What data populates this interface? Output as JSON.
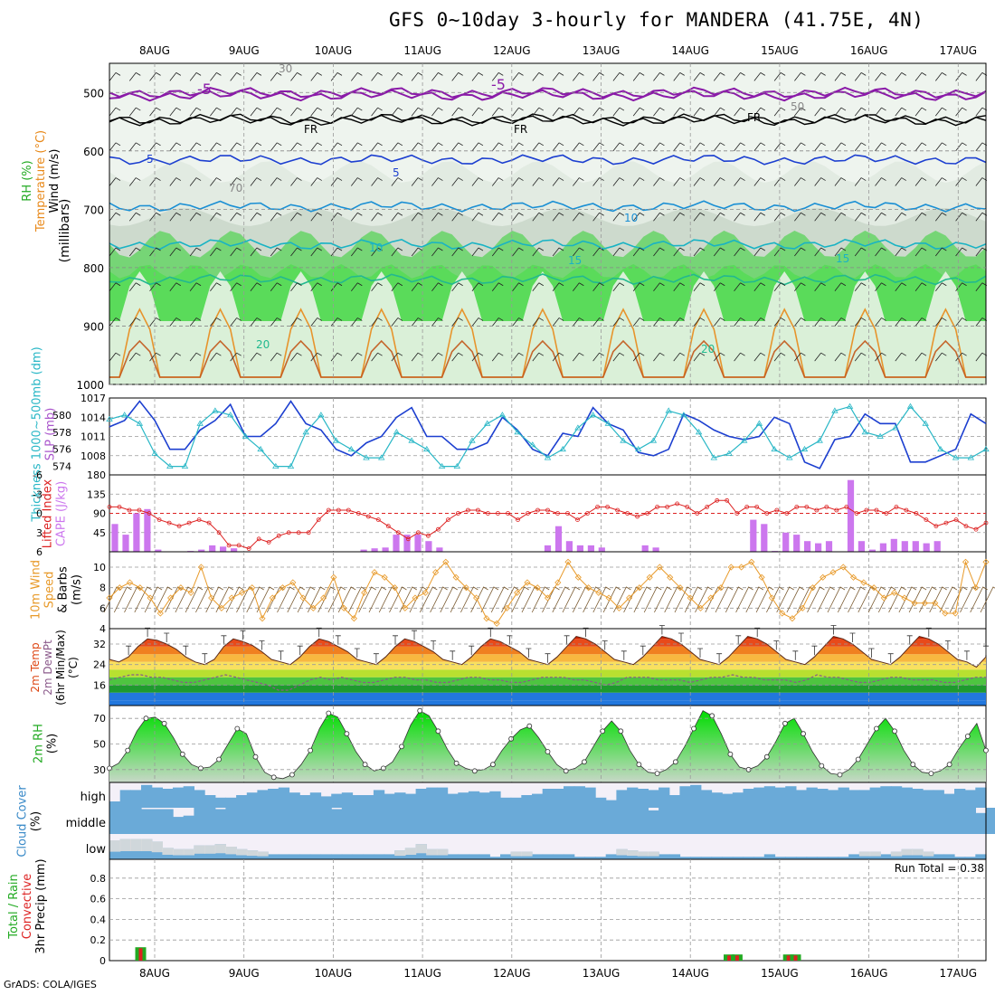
{
  "title": "GFS 0~10day 3-hourly for MANDERA (41.75E, 4N)",
  "credit": "GrADS: COLA/IGES",
  "chart_data": [
    {
      "type": "heatmap",
      "panel": "upper-air",
      "ylabel": "(millibars)",
      "left_labels": [
        "RH (%)",
        "Temperature (°C)",
        "Wind (m/s)"
      ],
      "y_ticks": [
        500,
        600,
        700,
        800,
        900,
        1000
      ],
      "ylim": [
        1000,
        450
      ],
      "x_dates": [
        "8AUG",
        "9AUG",
        "10AUG",
        "11AUG",
        "12AUG",
        "13AUG",
        "14AUG",
        "15AUG",
        "16AUG",
        "17AUG"
      ],
      "contour_labels": [
        "-5",
        "-5",
        "FR",
        "FR",
        "FR",
        "5",
        "5",
        "10",
        "10",
        "15",
        "15",
        "20",
        "20",
        "30",
        "50",
        "70"
      ]
    },
    {
      "type": "line",
      "panel": "slp-thickness",
      "left_labels": [
        "Thickness 1000~500mb (dm)",
        "SLP (mb)"
      ],
      "slp_ticks": [
        1008,
        1011,
        1014,
        1017
      ],
      "thk_ticks": [
        574,
        576,
        578,
        580
      ],
      "series": [
        {
          "name": "SLP (mb)",
          "color": "#1c3fd0",
          "values": [
            1012.5,
            1013.5,
            1016.5,
            1013.5,
            1009,
            1009,
            1012,
            1013.5,
            1016,
            1011,
            1011,
            1013,
            1016.5,
            1013,
            1012,
            1009,
            1008,
            1010,
            1011,
            1014,
            1015.5,
            1011,
            1011,
            1009,
            1009,
            1010,
            1014,
            1012,
            1009,
            1008,
            1011.5,
            1011,
            1015.5,
            1013,
            1012,
            1008.5,
            1008,
            1009,
            1014.5,
            1013.5,
            1012,
            1011,
            1010.5,
            1011,
            1014,
            1013,
            1007,
            1006,
            1010.5,
            1011,
            1014.5,
            1013,
            1013,
            1007,
            1007,
            1008,
            1009,
            1014.5,
            1013
          ]
        },
        {
          "name": "Thickness (dm)",
          "color": "#29b7c6",
          "values": [
            579.5,
            580,
            579,
            575.5,
            574,
            574,
            579,
            580.5,
            580,
            577.5,
            576,
            574,
            574,
            578,
            580,
            577,
            576,
            575,
            575,
            578,
            577,
            576,
            574,
            574,
            577,
            579,
            580,
            578,
            576.5,
            575,
            576,
            578.5,
            580,
            579,
            577,
            576,
            577,
            580.5,
            580,
            578,
            575,
            575.5,
            577,
            579,
            576,
            575,
            576,
            577,
            580.5,
            581,
            578,
            577.5,
            578.5,
            581,
            579,
            576,
            575,
            575,
            576
          ]
        }
      ]
    },
    {
      "type": "bar",
      "panel": "cape-li",
      "left_labels": [
        "Lifted Index",
        "CAPE (J/kg)"
      ],
      "cape_ticks": [
        45,
        90,
        135,
        180
      ],
      "li_ticks": [
        6,
        3,
        0,
        -3,
        -6
      ],
      "series": [
        {
          "name": "CAPE (J/kg)",
          "color": "#cc77ee",
          "values": [
            65,
            40,
            90,
            100,
            5,
            0,
            0,
            2,
            5,
            15,
            12,
            8,
            0,
            0,
            0,
            0,
            0,
            0,
            0,
            0,
            0,
            0,
            0,
            5,
            8,
            10,
            40,
            40,
            40,
            25,
            10,
            0,
            0,
            0,
            0,
            0,
            0,
            0,
            0,
            0,
            15,
            60,
            25,
            15,
            15,
            10,
            0,
            0,
            0,
            15,
            10,
            0,
            0,
            0,
            0,
            0,
            0,
            0,
            0,
            75,
            65,
            2,
            45,
            40,
            25,
            20,
            25,
            0,
            168,
            25,
            5,
            20,
            30,
            25,
            25,
            20,
            25,
            0,
            0,
            0,
            0
          ]
        },
        {
          "name": "Lifted Index",
          "color": "#dd2222",
          "values": [
            -1,
            -1,
            -0.5,
            -0.5,
            0,
            1,
            1.5,
            2,
            1.5,
            1,
            1.5,
            3,
            5,
            5,
            5.5,
            4,
            4.5,
            3.5,
            3,
            3,
            3,
            1,
            -0.5,
            -0.5,
            -0.5,
            0,
            0.5,
            1,
            2,
            3,
            4,
            3,
            3.5,
            2.5,
            1,
            0,
            -0.5,
            -0.5,
            0,
            0,
            0,
            1,
            0,
            -0.5,
            -0.5,
            0,
            0,
            1,
            0,
            -1,
            -1,
            -0.5,
            0,
            0.5,
            0,
            -1,
            -1,
            -1.5,
            -1,
            0,
            -1,
            -2,
            -2,
            0,
            -1,
            -1,
            0,
            -0.5,
            0,
            -1,
            -1,
            -0.5,
            -1,
            -0.5,
            -1,
            0,
            -0.5,
            -0.5,
            0,
            -1,
            -0.5,
            0,
            1,
            2,
            1.5,
            1,
            2,
            2.5,
            1.5
          ]
        }
      ]
    },
    {
      "type": "line",
      "panel": "wind10m",
      "left_labels": [
        "10m Wind",
        "Speed",
        "& Barbs",
        "(m/s)"
      ],
      "y_ticks": [
        4,
        6,
        8,
        10
      ],
      "series": [
        {
          "name": "Speed (m/s)",
          "color": "#e89a2a",
          "values": [
            7,
            8,
            8.5,
            8,
            7,
            5.5,
            7,
            8,
            7.5,
            10,
            7,
            6,
            7,
            7.5,
            8,
            5,
            7,
            8,
            8.5,
            7,
            6,
            7,
            9,
            6,
            5,
            7.5,
            9.5,
            9,
            8,
            6,
            7,
            7.5,
            9.5,
            10.5,
            9,
            8,
            7,
            5,
            4.5,
            6,
            7.5,
            8.5,
            8,
            7,
            8.5,
            10.5,
            9,
            8,
            7.5,
            7,
            6,
            7,
            8,
            9,
            10,
            9,
            8,
            7,
            6,
            7,
            8,
            10,
            10,
            10.5,
            9,
            7,
            5.5,
            5,
            6,
            8,
            9,
            9.5,
            10,
            9,
            8.5,
            8,
            7,
            7.5,
            7,
            6.5,
            6.5,
            6.5,
            5.5,
            5.5,
            10.5,
            8,
            10.5
          ]
        }
      ]
    },
    {
      "type": "area",
      "panel": "temp2m",
      "left_labels": [
        "2m Temp",
        "2m DewPt",
        "(6hr Min/Max)",
        "(°C)"
      ],
      "y_ticks": [
        16,
        24,
        32
      ],
      "series": [
        {
          "name": "2m Temp",
          "color": "#d93a1a",
          "values": [
            26,
            25,
            27,
            31,
            34,
            33.5,
            32,
            30,
            27,
            25,
            24,
            26,
            31,
            34,
            33,
            31.5,
            29,
            26,
            25,
            24,
            27,
            31,
            34,
            33,
            31,
            29,
            26,
            25,
            24,
            27,
            31,
            34,
            33,
            31,
            29,
            26,
            25,
            24,
            27,
            31,
            34,
            33,
            31,
            29,
            26,
            25,
            24,
            27,
            31,
            35,
            34,
            32,
            29,
            26,
            25,
            24,
            27,
            31,
            35,
            34,
            32,
            29,
            26,
            25,
            24,
            27,
            31,
            35,
            34,
            32,
            29,
            26,
            25,
            24,
            27,
            31,
            35,
            34,
            32,
            29,
            26,
            25,
            24,
            27,
            31,
            35,
            34,
            32,
            29,
            26,
            25,
            23,
            27
          ]
        },
        {
          "name": "2m DewPt",
          "color": "#8b5a8b",
          "values": [
            18,
            19,
            20,
            20,
            19,
            19,
            18,
            17,
            17,
            18,
            19,
            20,
            19,
            18,
            17,
            16,
            14,
            14,
            16,
            18,
            19,
            18,
            19,
            18,
            17,
            17,
            18,
            19,
            19,
            18,
            18,
            17,
            17,
            18,
            19,
            19,
            18,
            18,
            17,
            17,
            18,
            19,
            19,
            19,
            18,
            18,
            17,
            16,
            17,
            19,
            19,
            19,
            18,
            18,
            18,
            17,
            18,
            19,
            19,
            20,
            19,
            19,
            18,
            18,
            18,
            17,
            18,
            20,
            19,
            19,
            18,
            17,
            17,
            18,
            19,
            19,
            18,
            18,
            18,
            17,
            17,
            18,
            19,
            19
          ]
        }
      ]
    },
    {
      "type": "area",
      "panel": "rh2m",
      "left_labels": [
        "2m RH",
        "(%)"
      ],
      "y_ticks": [
        30,
        50,
        70
      ],
      "series": [
        {
          "name": "2m RH",
          "color": "#22aa22",
          "values": [
            31,
            35,
            45,
            60,
            70,
            71,
            66,
            55,
            42,
            34,
            31,
            32,
            38,
            50,
            62,
            58,
            40,
            28,
            24,
            23,
            26,
            34,
            45,
            62,
            74,
            71,
            58,
            44,
            34,
            29,
            31,
            36,
            48,
            65,
            76,
            72,
            60,
            46,
            35,
            31,
            29,
            30,
            34,
            45,
            54,
            61,
            64,
            55,
            44,
            34,
            29,
            31,
            36,
            48,
            60,
            68,
            60,
            45,
            34,
            28,
            27,
            30,
            36,
            48,
            62,
            76,
            72,
            58,
            42,
            32,
            30,
            33,
            40,
            52,
            66,
            70,
            58,
            44,
            33,
            27,
            26,
            30,
            38,
            50,
            62,
            70,
            60,
            45,
            34,
            28,
            27,
            29,
            34,
            46,
            56,
            66,
            45
          ]
        }
      ]
    },
    {
      "type": "bar",
      "panel": "cloud",
      "left_labels": [
        "Cloud Cover",
        "(%)"
      ],
      "level_labels": [
        "high",
        "middle",
        "low"
      ],
      "series": [
        {
          "name": "high",
          "values": [
            25,
            70,
            70,
            90,
            80,
            75,
            80,
            85,
            70,
            50,
            40,
            40,
            50,
            60,
            70,
            75,
            80,
            60,
            50,
            60,
            45,
            55,
            60,
            50,
            50,
            70,
            55,
            60,
            55,
            75,
            80,
            80,
            55,
            60,
            65,
            60,
            65,
            40,
            40,
            50,
            55,
            75,
            75,
            85,
            85,
            80,
            40,
            30,
            70,
            80,
            75,
            70,
            80,
            50,
            85,
            90,
            70,
            60,
            55,
            60,
            75,
            80,
            85,
            80,
            85,
            70,
            80,
            75,
            70,
            80,
            70,
            70,
            80,
            85,
            85,
            80,
            75,
            70,
            70,
            55,
            75,
            70,
            80
          ]
        },
        {
          "name": "middle",
          "values": [
            100,
            100,
            100,
            95,
            95,
            95,
            65,
            70,
            100,
            100,
            95,
            100,
            100,
            100,
            100,
            100,
            100,
            100,
            100,
            100,
            100,
            95,
            100,
            100,
            100,
            100,
            100,
            100,
            100,
            100,
            100,
            100,
            100,
            100,
            100,
            100,
            100,
            100,
            100,
            100,
            100,
            100,
            100,
            100,
            100,
            100,
            100,
            100,
            100,
            100,
            100,
            90,
            100,
            100,
            100,
            100,
            100,
            100,
            100,
            100,
            100,
            100,
            100,
            100,
            100,
            100,
            100,
            100,
            100,
            100,
            100,
            100,
            100,
            100,
            100,
            100,
            100,
            100,
            100,
            100,
            100,
            100,
            80,
            100,
            100,
            100,
            100,
            100,
            100
          ]
        },
        {
          "name": "low",
          "values": [
            75,
            80,
            80,
            80,
            70,
            45,
            40,
            40,
            55,
            55,
            60,
            50,
            40,
            35,
            30,
            20,
            20,
            20,
            20,
            20,
            20,
            20,
            20,
            20,
            20,
            20,
            20,
            35,
            45,
            60,
            40,
            40,
            20,
            20,
            20,
            20,
            10,
            20,
            30,
            30,
            20,
            20,
            20,
            20,
            10,
            10,
            10,
            20,
            40,
            35,
            30,
            30,
            20,
            20,
            10,
            10,
            10,
            10,
            10,
            10,
            10,
            10,
            20,
            10,
            10,
            10,
            10,
            10,
            10,
            10,
            20,
            30,
            30,
            20,
            30,
            40,
            40,
            30,
            20,
            20,
            10,
            10,
            20
          ]
        }
      ]
    },
    {
      "type": "bar",
      "panel": "precip",
      "left_labels": [
        "Total / Rain",
        "Convective",
        "3hr Precip (mm)"
      ],
      "run_total_label": "Run Total = 0.38",
      "y_ticks": [
        0,
        0.2,
        0.4,
        0.6,
        0.8
      ],
      "series": [
        {
          "name": "Total",
          "color": "#22aa22",
          "bars": [
            {
              "x": 3.1,
              "value": 0.13
            },
            {
              "x": 61.5,
              "value": 0.06
            },
            {
              "x": 62.3,
              "value": 0.06
            },
            {
              "x": 67.4,
              "value": 0.06
            },
            {
              "x": 68.1,
              "value": 0.06
            }
          ]
        },
        {
          "name": "Convective",
          "color": "#dd2222",
          "bars": [
            {
              "x": 3.1,
              "value": 0.12
            },
            {
              "x": 61.5,
              "value": 0.05
            },
            {
              "x": 62.3,
              "value": 0.05
            },
            {
              "x": 67.4,
              "value": 0.05
            },
            {
              "x": 68.1,
              "value": 0.05
            }
          ]
        }
      ]
    }
  ]
}
